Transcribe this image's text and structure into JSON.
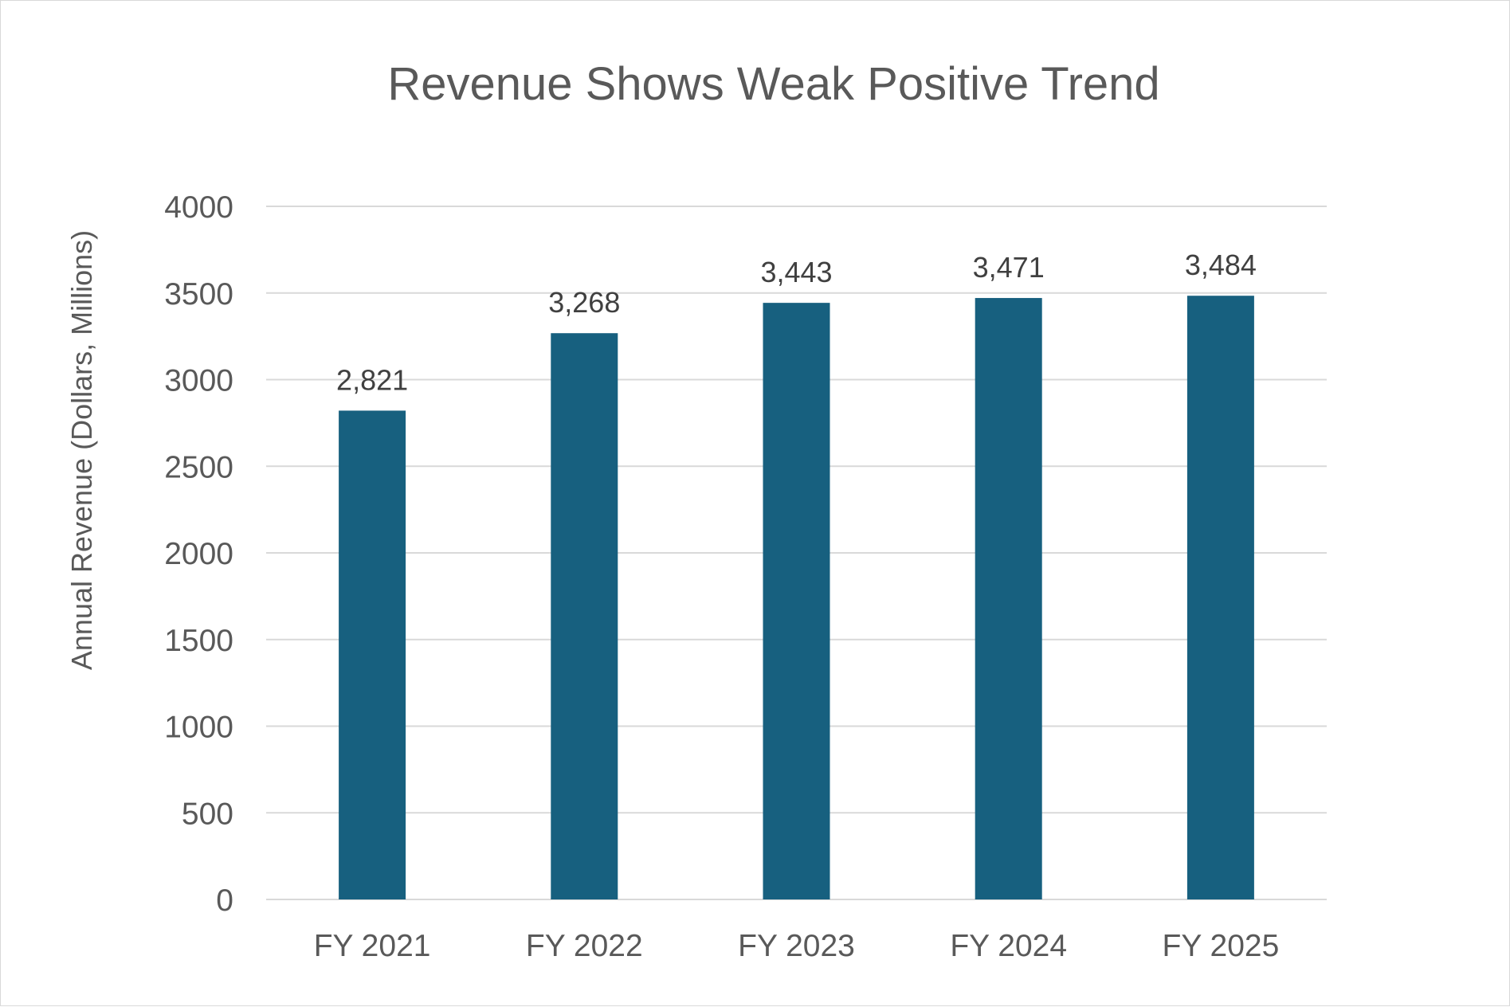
{
  "chart_data": {
    "type": "bar",
    "title": "Revenue Shows Weak Positive Trend",
    "xlabel": "",
    "ylabel": "Annual Revenue (Dollars, Millions)",
    "categories": [
      "FY 2021",
      "FY 2022",
      "FY 2023",
      "FY 2024",
      "FY 2025"
    ],
    "values": [
      2821,
      3268,
      3443,
      3471,
      3484
    ],
    "data_labels": [
      "2,821",
      "3,268",
      "3,443",
      "3,471",
      "3,484"
    ],
    "ylim": [
      0,
      4000
    ],
    "yticks": [
      0,
      500,
      1000,
      1500,
      2000,
      2500,
      3000,
      3500,
      4000
    ],
    "ytick_labels": [
      "0",
      "500",
      "1000",
      "1500",
      "2000",
      "2500",
      "3000",
      "3500",
      "4000"
    ],
    "grid": true,
    "legend": "none",
    "bar_color": "#17607F",
    "grid_color": "#D9D9D9",
    "text_color": "#595959"
  }
}
